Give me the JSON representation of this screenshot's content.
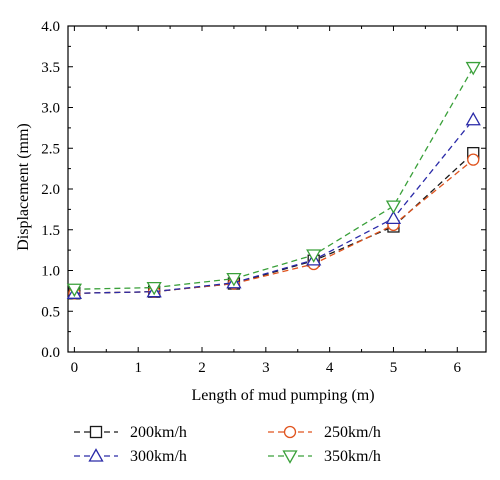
{
  "chart_data": {
    "type": "line",
    "xlabel": "Length of mud pumping (m)",
    "ylabel": "Displacement (mm)",
    "xlim": [
      -0.1,
      6.45
    ],
    "ylim": [
      0,
      4.0
    ],
    "x_ticks": [
      0,
      1,
      2,
      3,
      4,
      5,
      6
    ],
    "y_ticks": [
      "0.0",
      "0.5",
      "1.0",
      "1.5",
      "2.0",
      "2.5",
      "3.0",
      "3.5",
      "4.0"
    ],
    "x": [
      0,
      1.25,
      2.5,
      3.75,
      5.0,
      6.25
    ],
    "grid": false,
    "legend_position": "bottom",
    "series": [
      {
        "name": "200km/h",
        "marker": "square",
        "color": "#1a1a1a",
        "values": [
          0.72,
          0.74,
          0.84,
          1.12,
          1.54,
          2.44
        ]
      },
      {
        "name": "250km/h",
        "marker": "circle",
        "color": "#e0541e",
        "values": [
          0.72,
          0.74,
          0.84,
          1.08,
          1.56,
          2.36
        ]
      },
      {
        "name": "300km/h",
        "marker": "triangle-up",
        "color": "#2a2aa8",
        "values": [
          0.72,
          0.74,
          0.85,
          1.13,
          1.64,
          2.85
        ]
      },
      {
        "name": "350km/h",
        "marker": "triangle-down",
        "color": "#3aa03a",
        "values": [
          0.77,
          0.79,
          0.9,
          1.19,
          1.79,
          3.49
        ]
      }
    ]
  }
}
